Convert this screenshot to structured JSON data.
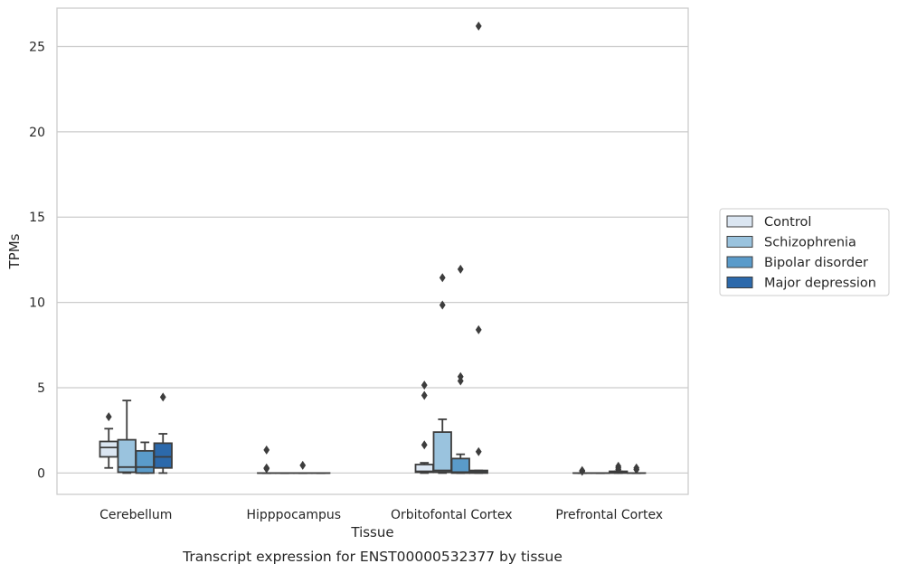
{
  "chart_data": {
    "type": "box",
    "title": "",
    "caption": "Transcript expression for ENST00000532377 by tissue",
    "xlabel": "Tissue",
    "ylabel": "TPMs",
    "ylim": [
      -1.25,
      27.25
    ],
    "yticks": [
      0,
      5,
      10,
      15,
      20,
      25
    ],
    "grid": "horizontal",
    "legend_position": "right",
    "categories": [
      "Cerebellum",
      "Hipppocampus",
      "Orbitofontal Cortex",
      "Prefrontal Cortex"
    ],
    "series": [
      {
        "name": "Control",
        "color": "#dbe6f2",
        "boxes": [
          {
            "q1": 0.95,
            "median": 1.5,
            "q3": 1.85,
            "whislo": 0.3,
            "whishi": 2.6,
            "fliers": [
              3.3
            ]
          },
          {
            "q1": 0.0,
            "median": 0.0,
            "q3": 0.0,
            "whislo": 0.0,
            "whishi": 0.0,
            "fliers": [
              0.25,
              0.3,
              1.35
            ]
          },
          {
            "q1": 0.05,
            "median": 0.1,
            "q3": 0.5,
            "whislo": 0.0,
            "whishi": 0.6,
            "fliers": [
              1.65,
              4.55,
              5.15
            ]
          },
          {
            "q1": 0.0,
            "median": 0.0,
            "q3": 0.0,
            "whislo": 0.0,
            "whishi": 0.0,
            "fliers": [
              0.1,
              0.15
            ]
          }
        ]
      },
      {
        "name": "Schizophrenia",
        "color": "#9ac3de",
        "boxes": [
          {
            "q1": 0.05,
            "median": 0.35,
            "q3": 1.95,
            "whislo": 0.0,
            "whishi": 4.25,
            "fliers": []
          },
          {
            "q1": 0.0,
            "median": 0.0,
            "q3": 0.0,
            "whislo": 0.0,
            "whishi": 0.0,
            "fliers": []
          },
          {
            "q1": 0.05,
            "median": 0.15,
            "q3": 2.4,
            "whislo": 0.0,
            "whishi": 3.15,
            "fliers": [
              9.85,
              11.45
            ]
          },
          {
            "q1": 0.0,
            "median": 0.0,
            "q3": 0.0,
            "whislo": 0.0,
            "whishi": 0.0,
            "fliers": []
          }
        ]
      },
      {
        "name": "Bipolar disorder",
        "color": "#5a9bca",
        "boxes": [
          {
            "q1": 0.0,
            "median": 0.35,
            "q3": 1.3,
            "whislo": 0.0,
            "whishi": 1.8,
            "fliers": []
          },
          {
            "q1": 0.0,
            "median": 0.0,
            "q3": 0.0,
            "whislo": 0.0,
            "whishi": 0.0,
            "fliers": [
              0.45
            ]
          },
          {
            "q1": 0.0,
            "median": 0.05,
            "q3": 0.85,
            "whislo": 0.0,
            "whishi": 1.1,
            "fliers": [
              5.4,
              5.65,
              11.95
            ]
          },
          {
            "q1": 0.0,
            "median": 0.05,
            "q3": 0.1,
            "whislo": 0.0,
            "whishi": 0.1,
            "fliers": [
              0.2,
              0.3,
              0.4
            ]
          }
        ]
      },
      {
        "name": "Major depression",
        "color": "#2c69ab",
        "boxes": [
          {
            "q1": 0.3,
            "median": 0.95,
            "q3": 1.75,
            "whislo": 0.0,
            "whishi": 2.3,
            "fliers": [
              4.45
            ]
          },
          {
            "q1": 0.0,
            "median": 0.0,
            "q3": 0.0,
            "whislo": 0.0,
            "whishi": 0.0,
            "fliers": []
          },
          {
            "q1": 0.0,
            "median": 0.05,
            "q3": 0.15,
            "whislo": 0.0,
            "whishi": 0.15,
            "fliers": [
              1.25,
              8.4,
              26.2
            ]
          },
          {
            "q1": 0.0,
            "median": 0.0,
            "q3": 0.0,
            "whislo": 0.0,
            "whishi": 0.0,
            "fliers": [
              0.2,
              0.3
            ]
          }
        ]
      }
    ]
  }
}
